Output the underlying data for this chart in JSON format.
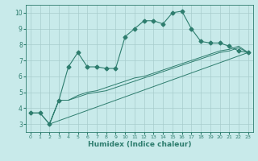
{
  "x_values": [
    0,
    1,
    2,
    3,
    4,
    5,
    6,
    7,
    8,
    9,
    10,
    11,
    12,
    13,
    14,
    15,
    16,
    17,
    18,
    19,
    20,
    21,
    22,
    23
  ],
  "line1_y": [
    3.7,
    3.7,
    3.0,
    4.5,
    6.6,
    7.5,
    6.6,
    6.6,
    6.5,
    6.5,
    8.5,
    9.0,
    9.5,
    9.5,
    9.3,
    10.0,
    10.1,
    9.0,
    8.2,
    8.1,
    8.1,
    7.9,
    7.6,
    7.5
  ],
  "line2_x": [
    2,
    3,
    4,
    5,
    6,
    7,
    8,
    9,
    10,
    11,
    12,
    13,
    14,
    15,
    16,
    17,
    18,
    19,
    20,
    21,
    22,
    23
  ],
  "line2_y": [
    3.0,
    4.5,
    4.5,
    4.7,
    4.9,
    5.0,
    5.1,
    5.3,
    5.5,
    5.7,
    5.9,
    6.1,
    6.3,
    6.5,
    6.7,
    6.9,
    7.1,
    7.3,
    7.5,
    7.6,
    7.8,
    7.5
  ],
  "line3_x": [
    2,
    3,
    4,
    5,
    6,
    7,
    8,
    9,
    10,
    11,
    12,
    13,
    14,
    15,
    16,
    17,
    18,
    19,
    20,
    21,
    22,
    23
  ],
  "line3_y": [
    3.0,
    4.5,
    4.5,
    4.8,
    5.0,
    5.1,
    5.3,
    5.5,
    5.7,
    5.9,
    6.0,
    6.2,
    6.4,
    6.6,
    6.8,
    7.0,
    7.2,
    7.4,
    7.6,
    7.7,
    7.9,
    7.5
  ],
  "line4_x": [
    0,
    1,
    2,
    23
  ],
  "line4_y": [
    3.7,
    3.7,
    3.0,
    7.5
  ],
  "line_color": "#2e7d6e",
  "bg_color": "#c8eaea",
  "grid_color": "#a8cccc",
  "xlim": [
    -0.5,
    23.5
  ],
  "ylim": [
    2.5,
    10.5
  ],
  "yticks": [
    3,
    4,
    5,
    6,
    7,
    8,
    9,
    10
  ],
  "xticks": [
    0,
    1,
    2,
    3,
    4,
    5,
    6,
    7,
    8,
    9,
    10,
    11,
    12,
    13,
    14,
    15,
    16,
    17,
    18,
    19,
    20,
    21,
    22,
    23
  ],
  "xlabel": "Humidex (Indice chaleur)",
  "marker_size": 2.5
}
